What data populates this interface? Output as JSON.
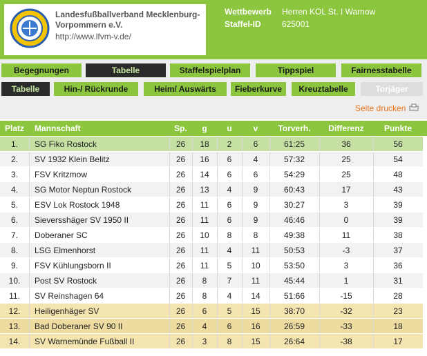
{
  "header": {
    "title_lines": [
      "Landesfußballverband Mecklenburg-",
      "Vorpommern e.V."
    ],
    "url": "http://www.lfvm-v.de/",
    "info": [
      [
        "Wettbewerb",
        "Herren KOL St. I Warnow"
      ],
      [
        "Staffel-ID",
        "625001"
      ]
    ]
  },
  "nav1": [
    "Begegnungen",
    "Tabelle",
    "Staffelspielplan",
    "Tippspiel",
    "Fairnesstabelle"
  ],
  "nav2": [
    "Tabelle",
    "Hin-/ Rückrunde",
    "Heim/ Auswärts",
    "Fieberkurve",
    "Kreuztabelle",
    "Torjäger"
  ],
  "print": "Seite drucken",
  "table": {
    "columns": [
      "Platz",
      "Mannschaft",
      "Sp.",
      "g",
      "u",
      "v",
      "Torverh.",
      "Differenz",
      "Punkte"
    ],
    "rows": [
      [
        "1.",
        "SG Fiko Rostock",
        "26",
        "18",
        "2",
        "6",
        "61:25",
        "36",
        "56"
      ],
      [
        "2.",
        "SV 1932 Klein Belitz",
        "26",
        "16",
        "6",
        "4",
        "57:32",
        "25",
        "54"
      ],
      [
        "3.",
        "FSV Kritzmow",
        "26",
        "14",
        "6",
        "6",
        "54:29",
        "25",
        "48"
      ],
      [
        "4.",
        "SG Motor Neptun Rostock",
        "26",
        "13",
        "4",
        "9",
        "60:43",
        "17",
        "43"
      ],
      [
        "5.",
        "ESV Lok Rostock 1948",
        "26",
        "11",
        "6",
        "9",
        "30:27",
        "3",
        "39"
      ],
      [
        "6.",
        "Sieversshäger SV 1950 II",
        "26",
        "11",
        "6",
        "9",
        "46:46",
        "0",
        "39"
      ],
      [
        "7.",
        "Doberaner SC",
        "26",
        "10",
        "8",
        "8",
        "49:38",
        "11",
        "38"
      ],
      [
        "8.",
        "LSG Elmenhorst",
        "26",
        "11",
        "4",
        "11",
        "50:53",
        "-3",
        "37"
      ],
      [
        "9.",
        "FSV Kühlungsborn II",
        "26",
        "11",
        "5",
        "10",
        "53:50",
        "3",
        "36"
      ],
      [
        "10.",
        "Post SV Rostock",
        "26",
        "8",
        "7",
        "11",
        "45:44",
        "1",
        "31"
      ],
      [
        "11.",
        "SV Reinshagen 64",
        "26",
        "8",
        "4",
        "14",
        "51:66",
        "-15",
        "28"
      ],
      [
        "12.",
        "Heiligenhäger SV",
        "26",
        "6",
        "5",
        "15",
        "38:70",
        "-32",
        "23"
      ],
      [
        "13.",
        "Bad Doberaner SV 90 II",
        "26",
        "4",
        "6",
        "16",
        "26:59",
        "-33",
        "18"
      ],
      [
        "14.",
        "SV Warnemünde Fußball II",
        "26",
        "3",
        "8",
        "15",
        "26:64",
        "-38",
        "17"
      ]
    ]
  }
}
